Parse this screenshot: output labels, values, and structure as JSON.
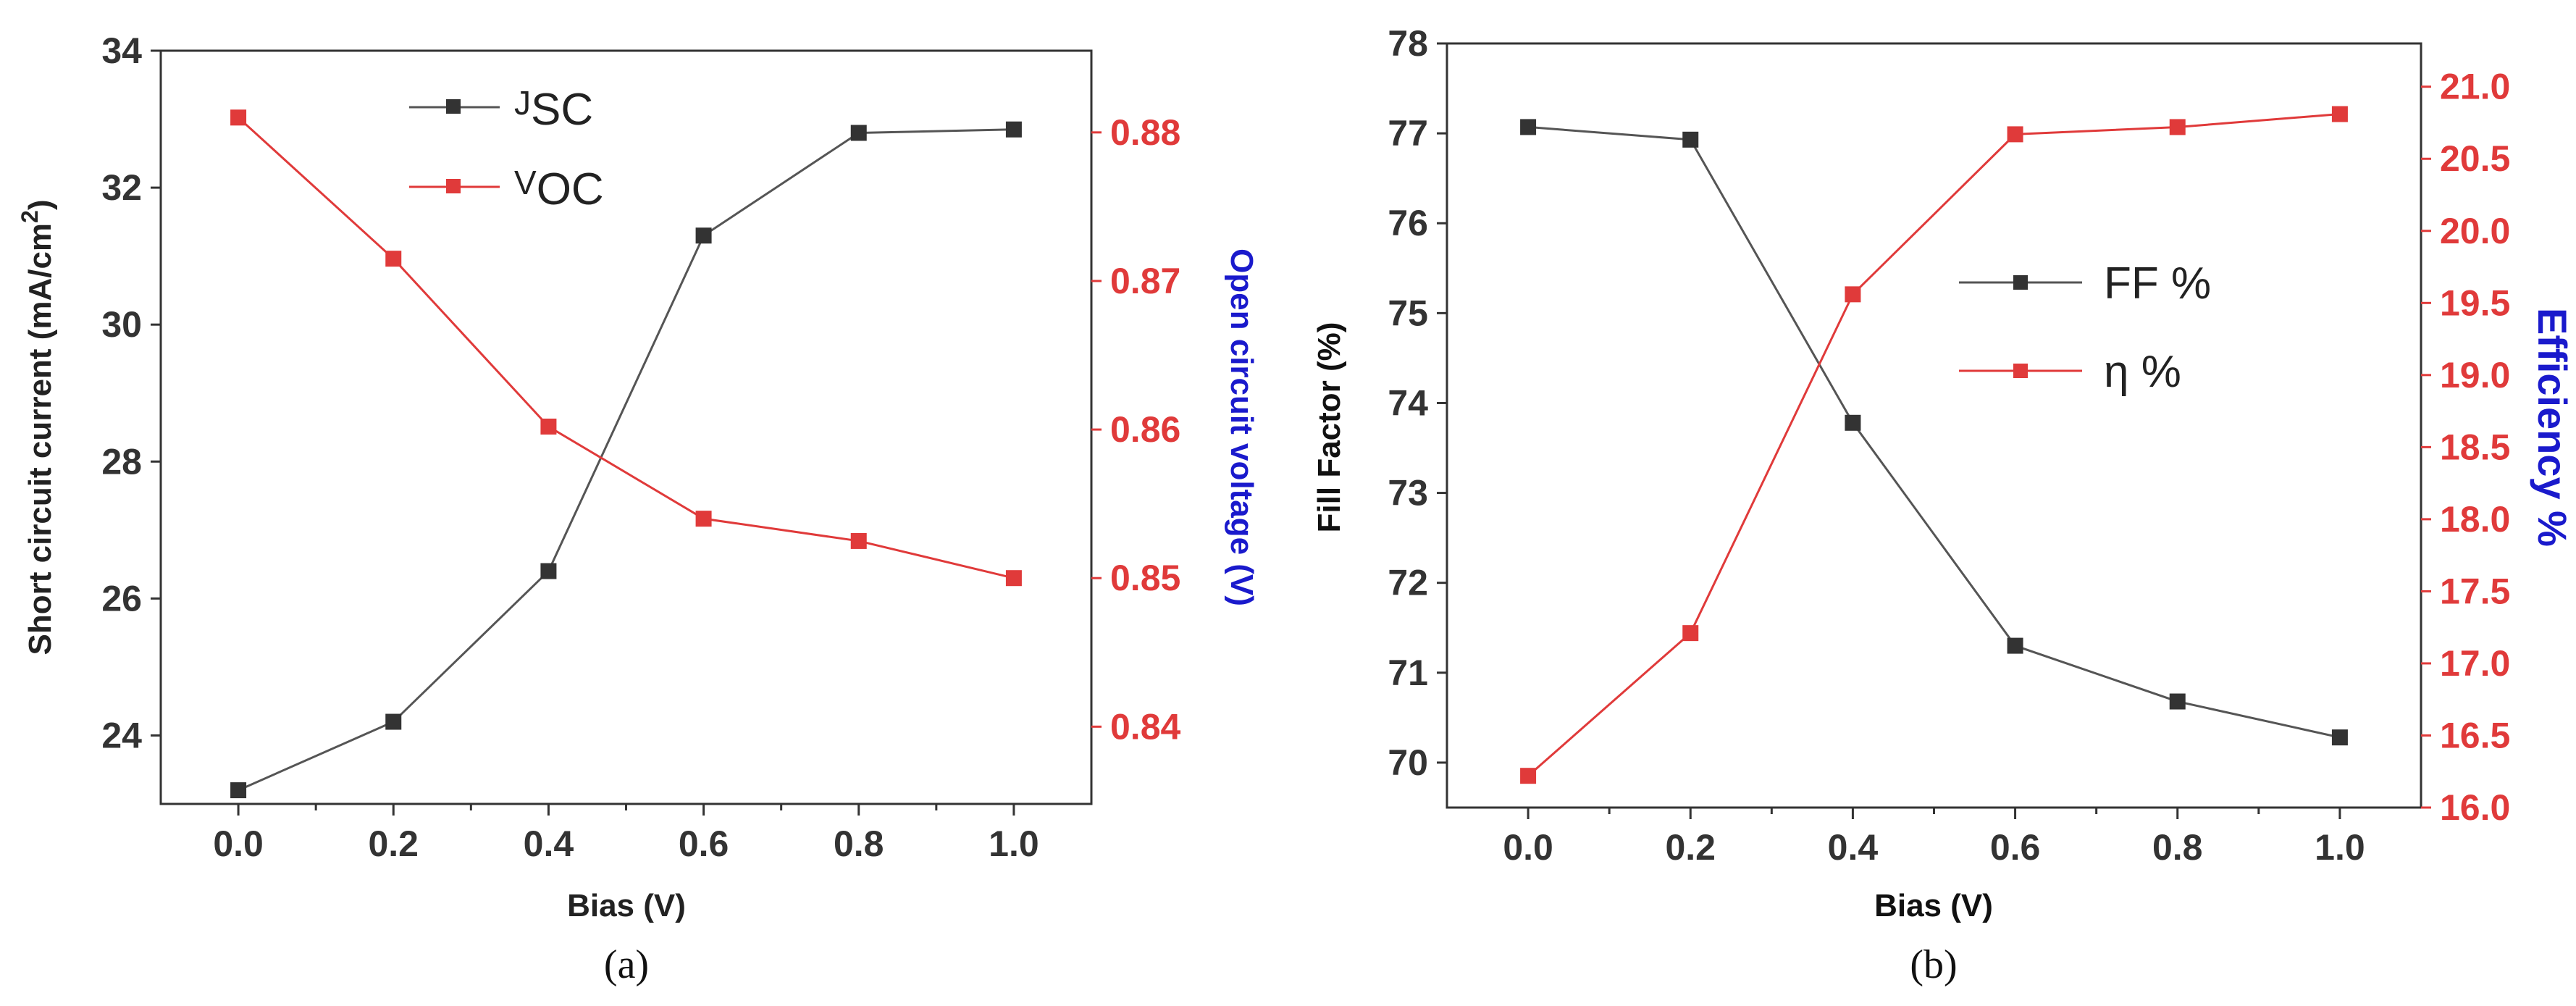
{
  "chart_data": [
    {
      "type": "line",
      "panel_label": "(a)",
      "x": [
        0.0,
        0.2,
        0.4,
        0.6,
        0.8,
        1.0
      ],
      "x_ticks": [
        "0.0",
        "0.2",
        "0.4",
        "0.6",
        "0.8",
        "1.0"
      ],
      "xlabel": "Bias (V)",
      "xlim": [
        -0.1,
        1.1
      ],
      "y_left": {
        "label": "Short circuit current (mA/cm2)",
        "lim": [
          23,
          34
        ],
        "ticks": [
          "24",
          "26",
          "28",
          "30",
          "32",
          "34"
        ],
        "tick_values": [
          24,
          26,
          28,
          30,
          32,
          34
        ],
        "color": "#333333"
      },
      "y_right": {
        "label": "Open circuit voltage (V)",
        "label_color": "#1a1acc",
        "lim": [
          0.8348,
          0.8855
        ],
        "ticks": [
          "0.84",
          "0.85",
          "0.86",
          "0.87",
          "0.88"
        ],
        "tick_values": [
          0.84,
          0.85,
          0.86,
          0.87,
          0.88
        ],
        "color": "#e03a3a"
      },
      "series": [
        {
          "name": "JSC",
          "axis": "left",
          "color": "#333333",
          "line_color": "#555555",
          "values": [
            23.2,
            24.2,
            26.4,
            31.3,
            32.8,
            32.85
          ]
        },
        {
          "name": "VOC",
          "axis": "right",
          "color": "#e03a3a",
          "line_color": "#e03a3a",
          "values": [
            0.881,
            0.8715,
            0.8602,
            0.854,
            0.8525,
            0.85
          ]
        }
      ],
      "legend_position": "top-center",
      "grid": false
    },
    {
      "type": "line",
      "panel_label": "(b)",
      "x": [
        0.0,
        0.2,
        0.4,
        0.6,
        0.8,
        1.0
      ],
      "x_ticks": [
        "0.0",
        "0.2",
        "0.4",
        "0.6",
        "0.8",
        "1.0"
      ],
      "xlabel": "Bias (V)",
      "xlim": [
        -0.1,
        1.1
      ],
      "y_left": {
        "label": "Fill Factor (%)",
        "lim": [
          69.5,
          78
        ],
        "ticks": [
          "70",
          "71",
          "72",
          "73",
          "74",
          "75",
          "76",
          "77",
          "78"
        ],
        "tick_values": [
          70,
          71,
          72,
          73,
          74,
          75,
          76,
          77,
          78
        ],
        "color": "#333333"
      },
      "y_right": {
        "label": "Efficiency %",
        "label_color": "#1a1acc",
        "lim": [
          16.0,
          21.3
        ],
        "ticks": [
          "16.0",
          "16.5",
          "17.0",
          "17.5",
          "18.0",
          "18.5",
          "19.0",
          "19.5",
          "20.0",
          "20.5",
          "21.0"
        ],
        "tick_values": [
          16.0,
          16.5,
          17.0,
          17.5,
          18.0,
          18.5,
          19.0,
          19.5,
          20.0,
          20.5,
          21.0
        ],
        "color": "#e03a3a"
      },
      "series": [
        {
          "name": "FF %",
          "axis": "left",
          "color": "#333333",
          "line_color": "#555555",
          "values": [
            77.07,
            76.93,
            73.78,
            71.3,
            70.68,
            70.28
          ]
        },
        {
          "name": "η %",
          "axis": "right",
          "color": "#e03a3a",
          "line_color": "#e03a3a",
          "values": [
            16.22,
            17.21,
            19.56,
            20.67,
            20.72,
            20.81
          ]
        }
      ],
      "legend_position": "right-middle",
      "grid": false
    }
  ]
}
